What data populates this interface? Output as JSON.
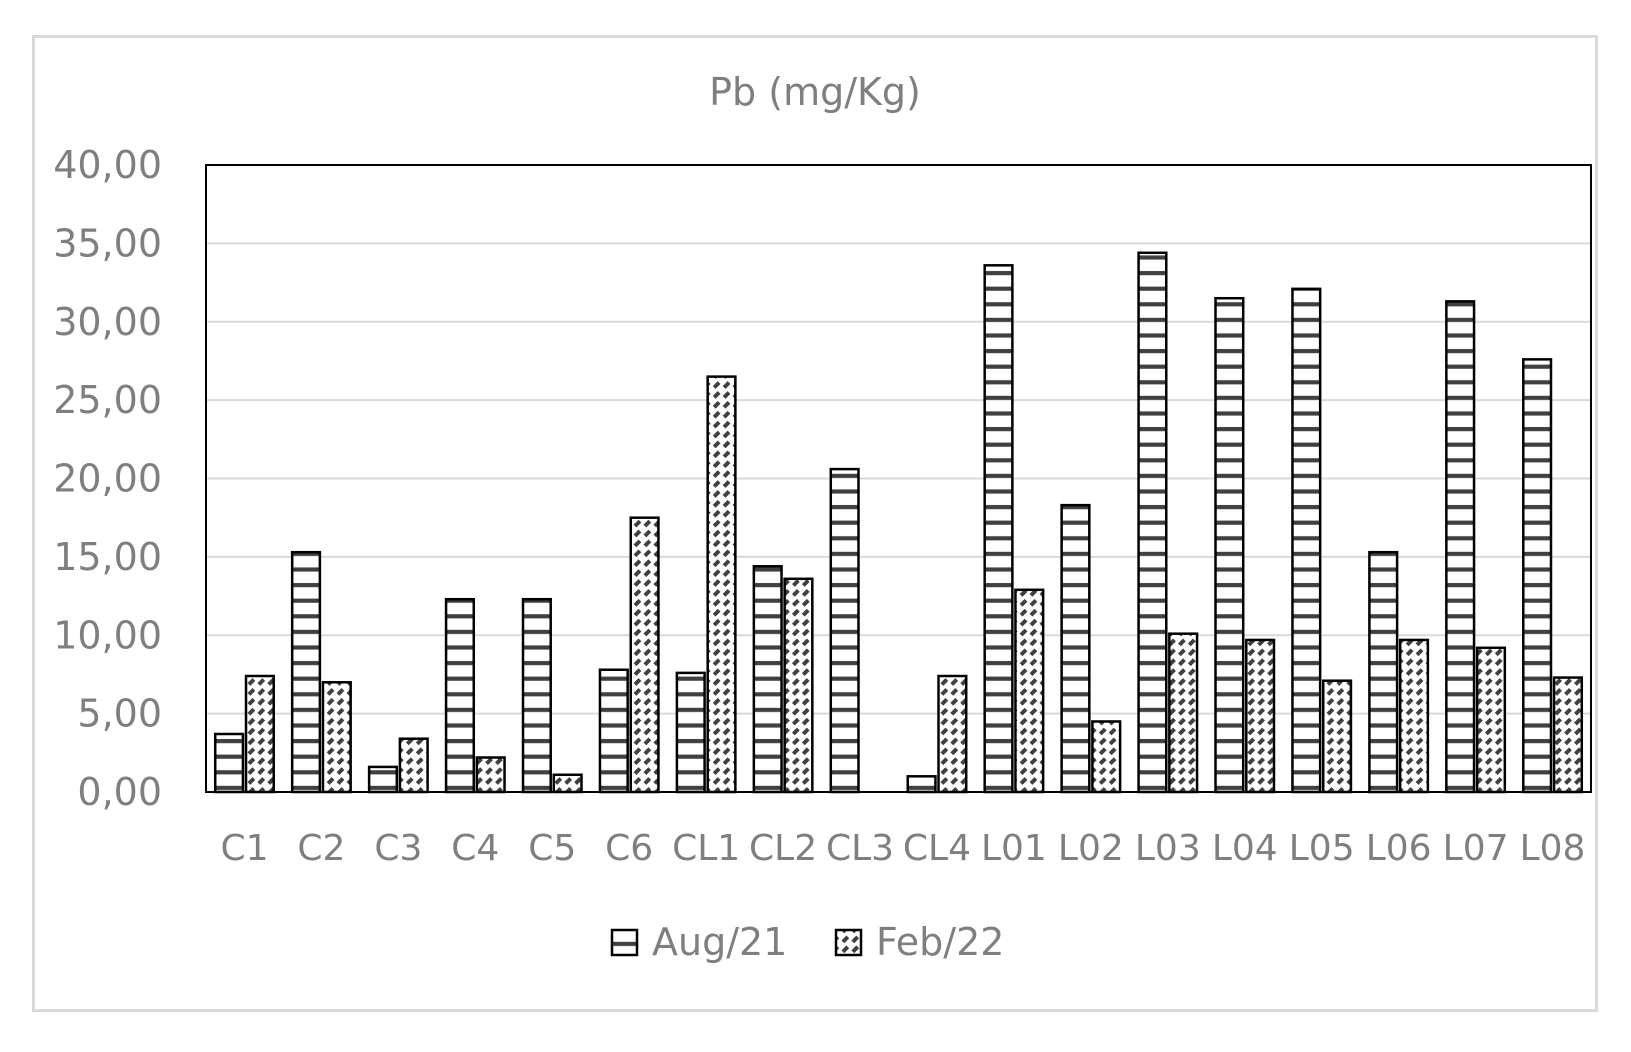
{
  "chart_data": {
    "type": "bar",
    "title": "Pb (mg/Kg)",
    "xlabel": "",
    "ylabel": "",
    "ylim": [
      0,
      40
    ],
    "yticks": [
      "0,00",
      "5,00",
      "10,00",
      "15,00",
      "20,00",
      "25,00",
      "30,00",
      "35,00",
      "40,00"
    ],
    "categories": [
      "C1",
      "C2",
      "C3",
      "C4",
      "C5",
      "C6",
      "CL1",
      "CL2",
      "CL3",
      "CL4",
      "L01",
      "L02",
      "L03",
      "L04",
      "L05",
      "L06",
      "L07",
      "L08"
    ],
    "series": [
      {
        "name": "Aug/21",
        "pattern": "horizontal-stripes",
        "values": [
          3.7,
          15.3,
          1.6,
          12.3,
          12.3,
          7.8,
          7.6,
          14.4,
          20.6,
          1.0,
          33.6,
          18.3,
          34.4,
          31.5,
          32.1,
          15.3,
          31.3,
          27.6
        ]
      },
      {
        "name": "Feb/22",
        "pattern": "diagonal-checker",
        "values": [
          7.4,
          7.0,
          3.4,
          2.2,
          1.1,
          17.5,
          26.5,
          13.6,
          0,
          7.4,
          12.9,
          4.5,
          10.1,
          9.7,
          7.1,
          9.7,
          9.2,
          7.3
        ]
      }
    ],
    "grid": true,
    "legend_position": "bottom",
    "colors": {
      "stroke": "#000000",
      "pattern": "#404040",
      "grid": "#d9d9d9",
      "text": "#7f7f7f"
    }
  }
}
